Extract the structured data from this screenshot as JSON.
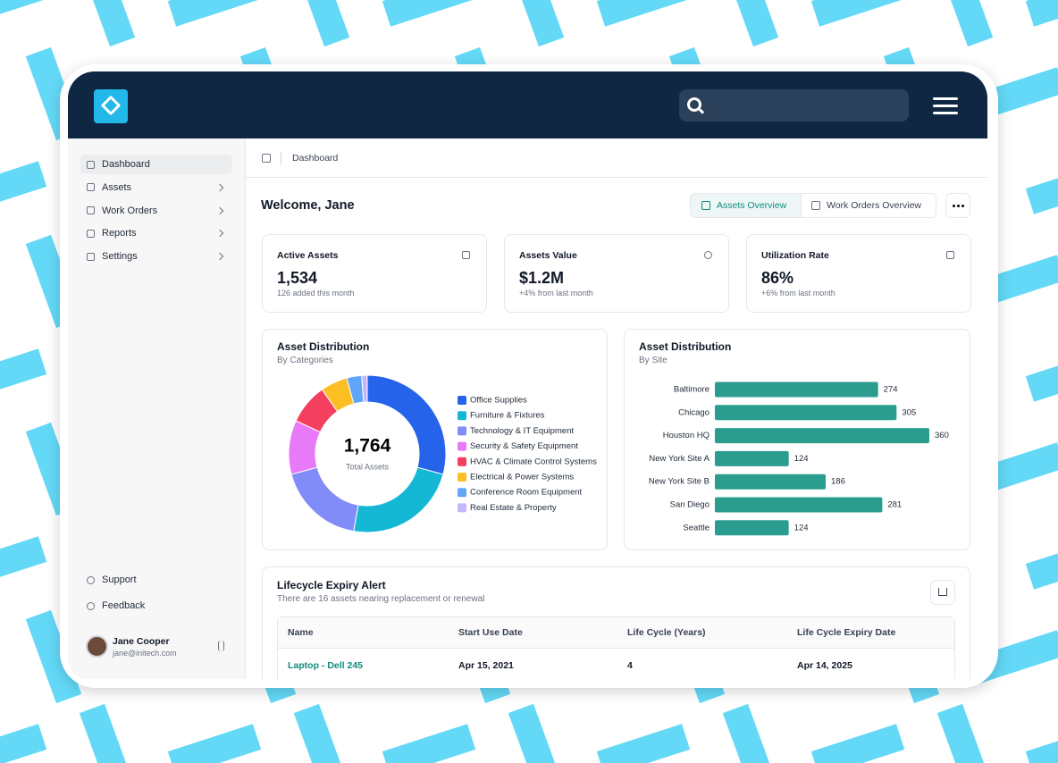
{
  "sidebar": {
    "nav": [
      "Dashboard",
      "Assets",
      "Work Orders",
      "Reports",
      "Settings"
    ],
    "footer": [
      "Support",
      "Feedback"
    ],
    "user": {
      "name": "Jane Cooper",
      "email": "jane@initech.com"
    }
  },
  "breadcrumb": "Dashboard",
  "welcome": "Welcome, Jane",
  "tabs": [
    "Assets Overview",
    "Work Orders Overview"
  ],
  "stats": [
    {
      "label": "Active Assets",
      "value": "1,534",
      "note": "126 added this month"
    },
    {
      "label": "Assets Value",
      "value": "$1.2M",
      "note": "+4% from last month"
    },
    {
      "label": "Utilization Rate",
      "value": "86%",
      "note": "+6% from last month"
    }
  ],
  "chart_data": [
    {
      "type": "pie",
      "title": "Asset Distribution",
      "subtitle": "By Categories",
      "center_value": "1,764",
      "center_label": "Total Assets",
      "categories": [
        "Office Supplies",
        "Furniture & Fixtures",
        "Technology & IT Equipment",
        "Security & Safety Equipment",
        "HVAC & Climate Control Systems",
        "Electrical & Power Systems",
        "Conference Room Equipment",
        "Real Estate & Property"
      ],
      "values": [
        515,
        416,
        318,
        196,
        147,
        98,
        54,
        20
      ],
      "colors": [
        "#2563eb",
        "#14b8d4",
        "#818cf8",
        "#e879f9",
        "#f43f5e",
        "#fbbf24",
        "#60a5fa",
        "#c4b5fd"
      ]
    },
    {
      "type": "bar",
      "orientation": "horizontal",
      "title": "Asset Distribution",
      "subtitle": "By Site",
      "categories": [
        "Baltimore",
        "Chicago",
        "Houston HQ",
        "New York Site A",
        "New York Site B",
        "San Diego",
        "Seattle"
      ],
      "values": [
        274,
        305,
        360,
        124,
        186,
        281,
        124
      ],
      "color": "#2a9d8f",
      "xlim": [
        0,
        360
      ]
    }
  ],
  "table": {
    "title": "Lifecycle Expiry Alert",
    "subtitle": "There are 16 assets nearing replacement or renewal",
    "columns": [
      "Name",
      "Start Use Date",
      "Life Cycle (Years)",
      "Life Cycle Expiry Date"
    ],
    "rows": [
      [
        "Laptop - Dell 245",
        "Apr 15, 2021",
        4,
        "Apr 14, 2025"
      ]
    ]
  }
}
